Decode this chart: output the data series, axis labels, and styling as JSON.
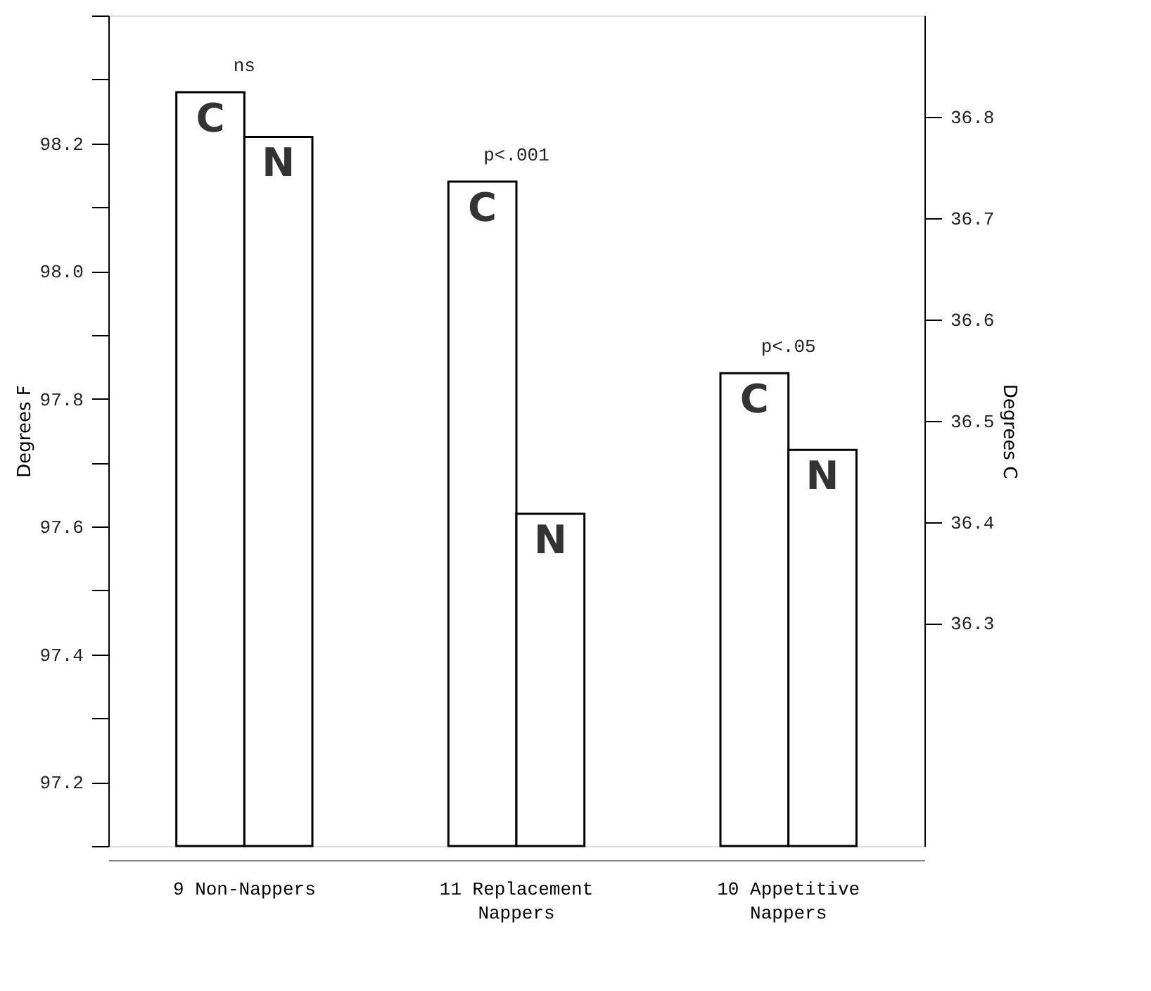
{
  "chart_data": {
    "type": "bar",
    "categories": [
      "9 Non-Nappers",
      "11 Replacement\nNappers",
      "10 Appetitive\nNappers"
    ],
    "series": [
      {
        "name": "C",
        "color": "#ffffff",
        "values": [
          98.28,
          98.14,
          97.84
        ]
      },
      {
        "name": "N",
        "color": "#ffffff",
        "values": [
          98.21,
          97.62,
          97.72
        ]
      }
    ],
    "ylabel": "Degrees F",
    "y2label": "Degrees C",
    "ylim": [
      97.1,
      98.4
    ],
    "yticks": [
      {
        "value": 97.1,
        "label": null
      },
      97.2,
      {
        "value": 97.3,
        "label": null
      },
      97.4,
      {
        "value": 97.5,
        "label": null
      },
      97.6,
      {
        "value": 97.7,
        "label": null
      },
      97.8,
      {
        "value": 97.9,
        "label": null
      },
      {
        "value": 98.0,
        "label": "98.0"
      },
      {
        "value": 98.1,
        "label": null
      },
      98.2,
      {
        "value": 98.3,
        "label": null
      },
      {
        "value": 98.4,
        "label": null
      }
    ],
    "y2lim": [
      36.08,
      36.9
    ],
    "y2ticks": [
      36.3,
      36.4,
      36.5,
      36.6,
      36.7,
      36.8
    ],
    "annotations": [
      "ns",
      "p<.001",
      "p<.05"
    ],
    "grid": false,
    "legend": false
  }
}
